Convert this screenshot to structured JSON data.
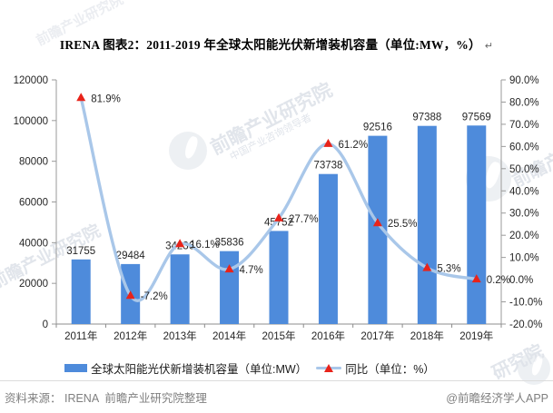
{
  "title": {
    "text": "IRENA 图表2：2011-2019 年全球太阳能光伏新增装机容量（单位:MW，%）",
    "return_mark": "↵"
  },
  "chart_data": {
    "type": "combo-bar-line",
    "categories": [
      "2011年",
      "2012年",
      "2013年",
      "2014年",
      "2015年",
      "2016年",
      "2017年",
      "2018年",
      "2019年"
    ],
    "series": [
      {
        "name": "全球太阳能光伏新增装机容量（单位:MW）",
        "type": "bar",
        "axis": "left",
        "color": "#4e8bdb",
        "values": [
          31755,
          29484,
          34236,
          35836,
          45752,
          73738,
          92516,
          97388,
          97569
        ]
      },
      {
        "name": "同比（单位：%）",
        "type": "line",
        "axis": "right",
        "line_color": "#a9c7e9",
        "marker": "triangle",
        "marker_color": "#e8231a",
        "values": [
          81.9,
          -7.2,
          16.1,
          4.7,
          27.7,
          61.2,
          25.5,
          5.3,
          0.2
        ],
        "labels": [
          "81.9%",
          "-7.2%",
          "16.1%",
          "4.7%",
          "27.7%",
          "61.2%",
          "25.5%",
          "5.3%",
          "0.2%"
        ]
      }
    ],
    "left_axis": {
      "min": 0,
      "max": 120000,
      "step": 20000,
      "ticks": [
        "120000",
        "100000",
        "80000",
        "60000",
        "40000",
        "20000",
        "0"
      ]
    },
    "right_axis": {
      "min": -20,
      "max": 90,
      "step": 10,
      "ticks": [
        "90.0%",
        "80.0%",
        "70.0%",
        "60.0%",
        "50.0%",
        "40.0%",
        "30.0%",
        "20.0%",
        "10.0%",
        "0.0%",
        "-10.0%",
        "-20.0%"
      ]
    },
    "grid": false,
    "legend_position": "bottom",
    "axis_color": "#9a9a9a",
    "label_color": "#262626"
  },
  "footer": {
    "source": "资料来源： IRENA  前瞻产业研究院整理",
    "credit": "@前瞻经济学人APP"
  },
  "watermarks": {
    "brand": "前瞻产业研究院",
    "tagline": "中国产业咨询领导者",
    "partial": "研究院"
  }
}
